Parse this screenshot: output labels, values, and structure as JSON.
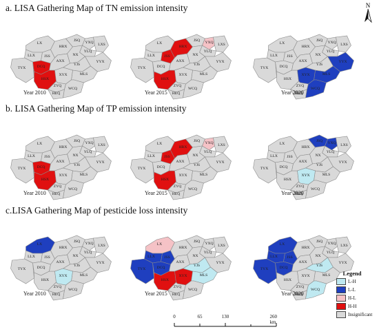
{
  "sections": [
    {
      "title": "a. LISA Gathering Map of TN emission intensity"
    },
    {
      "title": "b. LISA Gathering Map of TP emission intensity"
    },
    {
      "title": "c.LISA Gathering Map of pesticide loss intensity"
    }
  ],
  "years": [
    "Year 2010",
    "Year 2015",
    "Year 2020"
  ],
  "county_labels": [
    "LX",
    "LLX",
    "JSS",
    "DCQ",
    "TYX",
    "HSX",
    "HRX",
    "JSQ",
    "YXQ",
    "YLQ",
    "LXS",
    "NX",
    "AXX",
    "YJS",
    "YYX",
    "MLS",
    "XYX",
    "ZYQ",
    "HEQ",
    "WCQ"
  ],
  "north_label": "N",
  "legend": {
    "title": "Legend",
    "items": [
      {
        "label": "L-H",
        "color": "#bfe9f1"
      },
      {
        "label": "L-L",
        "color": "#1f3fbf"
      },
      {
        "label": "H-L",
        "color": "#f5c2c6"
      },
      {
        "label": "H-H",
        "color": "#e01010"
      },
      {
        "label": "Insignificant",
        "color": "#d9d9d9"
      }
    ]
  },
  "scale": {
    "ticks": [
      "0",
      "65",
      "130",
      "260 km"
    ]
  },
  "colors": {
    "base": "#d9d9d9",
    "border": "#8a8a8a",
    "HH": "#e01010",
    "HL": "#f5c2c6",
    "LL": "#1f3fbf",
    "LH": "#bfe9f1"
  },
  "maps": [
    {
      "section": 0,
      "year": 0,
      "clusters": {
        "HSX": "HH",
        "DCQ": "HH"
      }
    },
    {
      "section": 0,
      "year": 1,
      "clusters": {
        "HSX": "HH",
        "JSS": "HH",
        "HRX": "HH",
        "YXQ": "HL"
      }
    },
    {
      "section": 0,
      "year": 2,
      "clusters": {
        "MLS": "LL",
        "YYX": "LL",
        "XYX": "LL",
        "WCQ": "LL"
      }
    },
    {
      "section": 1,
      "year": 0,
      "clusters": {
        "HSX": "HH",
        "DCQ": "HH"
      }
    },
    {
      "section": 1,
      "year": 1,
      "clusters": {
        "HSX": "HH",
        "JSS": "HH",
        "HRX": "HH",
        "YXQ": "HL"
      }
    },
    {
      "section": 1,
      "year": 2,
      "clusters": {
        "JSQ": "LL",
        "YXQ": "LL",
        "XYX": "LH"
      }
    },
    {
      "section": 2,
      "year": 0,
      "clusters": {
        "LX": "LL",
        "XYX": "LH"
      }
    },
    {
      "section": 2,
      "year": 1,
      "clusters": {
        "LX": "HL",
        "LLX": "LL",
        "JSS": "LL",
        "DCQ": "LL",
        "TYX": "LL",
        "HSX": "HH",
        "YJS": "LH",
        "XYX": "HH",
        "MLS": "LH"
      }
    },
    {
      "section": 2,
      "year": 2,
      "clusters": {
        "LX": "LL",
        "LLX": "LL",
        "JSS": "LL",
        "DCQ": "LL",
        "TYX": "LL",
        "YJS": "LH",
        "WCQ": "LH"
      }
    }
  ]
}
